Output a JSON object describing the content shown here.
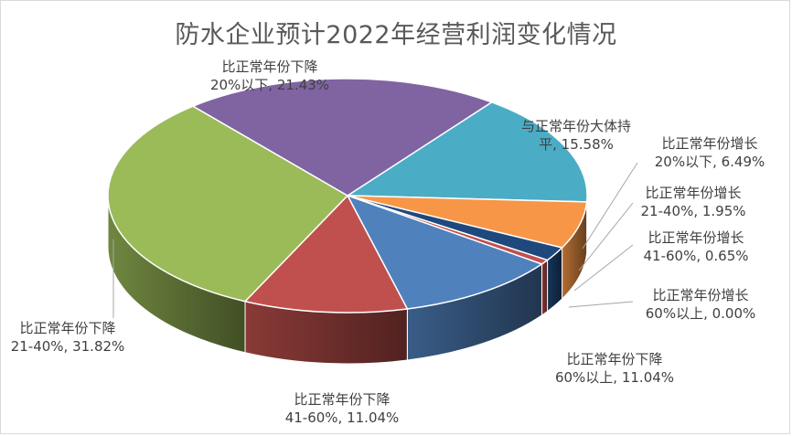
{
  "chart_data": {
    "type": "pie",
    "title": "防水企业预计2022年经营利润变化情况",
    "slices": [
      {
        "name": "与正常年份大体持平",
        "label_lines": [
          "与正常年份大体持",
          "平, 15.58%"
        ],
        "value": 15.58,
        "color": "#4bacc6"
      },
      {
        "name": "比正常年份增长20%以下",
        "label_lines": [
          "比正常年份增长",
          "20%以下, 6.49%"
        ],
        "value": 6.49,
        "color": "#f79646"
      },
      {
        "name": "比正常年份增长21-40%",
        "label_lines": [
          "比正常年份增长",
          "21-40%, 1.95%"
        ],
        "value": 1.95,
        "color": "#1f497d"
      },
      {
        "name": "比正常年份增长41-60%",
        "label_lines": [
          "比正常年份增长",
          "41-60%, 0.65%"
        ],
        "value": 0.65,
        "color": "#c0504d"
      },
      {
        "name": "比正常年份增长60%以上",
        "label_lines": [
          "比正常年份增长",
          "60%以上, 0.00%"
        ],
        "value": 0.0,
        "color": "#9bbb59"
      },
      {
        "name": "比正常年份下降60%以上",
        "label_lines": [
          "比正常年份下降",
          "60%以上, 11.04%"
        ],
        "value": 11.04,
        "color": "#4f81bd"
      },
      {
        "name": "比正常年份下降41-60%",
        "label_lines": [
          "比正常年份下降",
          "41-60%, 11.04%"
        ],
        "value": 11.04,
        "color": "#c0504d"
      },
      {
        "name": "比正常年份下降21-40%",
        "label_lines": [
          "比正常年份下降",
          "21-40%, 31.82%"
        ],
        "value": 31.82,
        "color": "#9bbb59"
      },
      {
        "name": "比正常年份下降20%以下",
        "label_lines": [
          "比正常年份下降",
          "20%以下, 21.43%"
        ],
        "value": 21.43,
        "color": "#8064a2"
      }
    ],
    "legend": "none",
    "style": "3d-pie"
  }
}
